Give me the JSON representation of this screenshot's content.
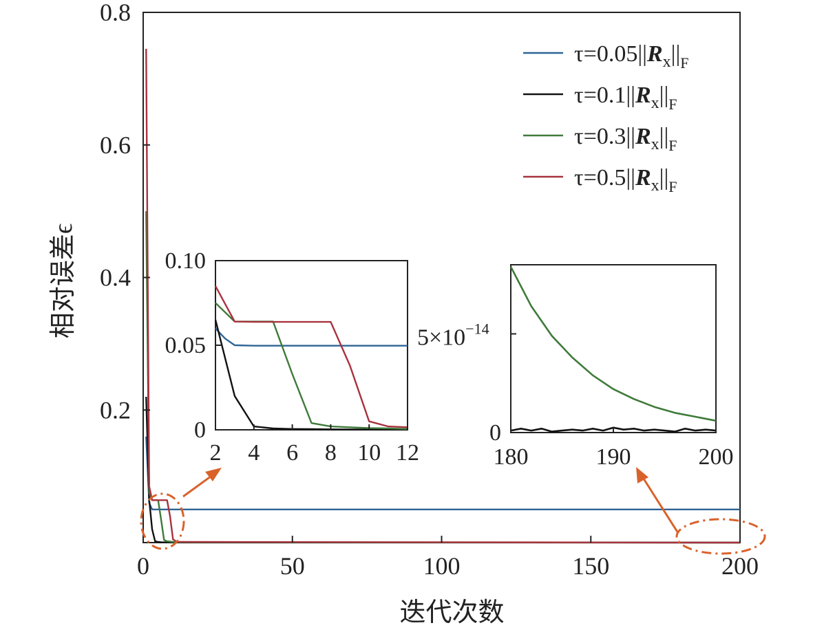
{
  "chart_data": [
    {
      "type": "line",
      "xlabel": "迭代次数",
      "ylabel": "相对误差ϵ",
      "xlim": [
        0,
        200
      ],
      "ylim": [
        0,
        0.8
      ],
      "xticks": [
        0,
        50,
        100,
        150,
        200
      ],
      "yticks": [
        0.2,
        0.4,
        0.6,
        0.8
      ],
      "xtick_labels": [
        "0",
        "50",
        "100",
        "150",
        "200"
      ],
      "ytick_labels": [
        "0.2",
        "0.4",
        "0.6",
        "0.8"
      ],
      "legend_position": "top-right",
      "series": [
        {
          "name": "τ=0.05||Rx||F",
          "label_parts": {
            "prefix": "τ=0.05||",
            "bold": "R",
            "sub": "x",
            "suffix": "||",
            "sub2": "F"
          },
          "color": "#2e6496",
          "x": [
            1,
            2,
            3,
            4,
            5,
            6,
            7,
            8,
            9,
            10,
            12,
            200
          ],
          "y": [
            0.16,
            0.06,
            0.05,
            0.05,
            0.05,
            0.05,
            0.05,
            0.05,
            0.05,
            0.05,
            0.05,
            0.05
          ]
        },
        {
          "name": "τ=0.1||Rx||F",
          "label_parts": {
            "prefix": "τ=0.1||",
            "bold": "R",
            "sub": "x",
            "suffix": "||",
            "sub2": "F"
          },
          "color": "#111111",
          "x": [
            1,
            2,
            3,
            4,
            5,
            6,
            8,
            12,
            200
          ],
          "y": [
            0.22,
            0.065,
            0.02,
            0.002,
            0.001,
            0.0005,
            0.0002,
            0.0001,
            0.0
          ]
        },
        {
          "name": "τ=0.3||Rx||F",
          "label_parts": {
            "prefix": "τ=0.3||",
            "bold": "R",
            "sub": "x",
            "suffix": "||",
            "sub2": "F"
          },
          "color": "#3f7a3a",
          "x": [
            1,
            2,
            3,
            4,
            5,
            6,
            7,
            8,
            10,
            12,
            200
          ],
          "y": [
            0.5,
            0.075,
            0.064,
            0.064,
            0.064,
            0.035,
            0.004,
            0.002,
            0.001,
            0.0005,
            0.0
          ]
        },
        {
          "name": "τ=0.5||Rx||F",
          "label_parts": {
            "prefix": "τ=0.5||",
            "bold": "R",
            "sub": "x",
            "suffix": "||",
            "sub2": "F"
          },
          "color": "#a8323e",
          "x": [
            1,
            2,
            3,
            4,
            5,
            6,
            7,
            8,
            9,
            10,
            11,
            12,
            200
          ],
          "y": [
            0.745,
            0.085,
            0.064,
            0.064,
            0.064,
            0.064,
            0.064,
            0.064,
            0.04,
            0.005,
            0.002,
            0.001,
            0.0
          ]
        }
      ]
    },
    {
      "type": "line",
      "inset": "left",
      "xlim": [
        2,
        12
      ],
      "ylim": [
        0,
        0.1
      ],
      "xticks": [
        2,
        4,
        6,
        8,
        10,
        12
      ],
      "yticks": [
        0,
        0.05,
        0.1
      ],
      "xtick_labels": [
        "2",
        "4",
        "6",
        "8",
        "10",
        "12"
      ],
      "ytick_labels": [
        "0",
        "0.05",
        "0.10"
      ],
      "series": [
        {
          "name": "τ=0.05||Rx||F",
          "color": "#2e6496",
          "x": [
            2,
            2.5,
            3,
            4,
            5,
            6,
            7,
            8,
            9,
            10,
            11,
            12
          ],
          "y": [
            0.06,
            0.054,
            0.05,
            0.0497,
            0.0497,
            0.0497,
            0.0497,
            0.0497,
            0.0497,
            0.0497,
            0.0497,
            0.0497
          ]
        },
        {
          "name": "τ=0.1||Rx||F",
          "color": "#111111",
          "x": [
            2,
            3,
            4,
            5,
            6,
            7,
            8,
            9,
            10,
            11,
            12
          ],
          "y": [
            0.065,
            0.02,
            0.002,
            0.0008,
            0.0005,
            0.0004,
            0.0003,
            0.0002,
            0.0002,
            0.0001,
            0.0001
          ]
        },
        {
          "name": "τ=0.3||Rx||F",
          "color": "#3f7a3a",
          "x": [
            2,
            3,
            4,
            5,
            6,
            7,
            8,
            9,
            10,
            11,
            12
          ],
          "y": [
            0.075,
            0.064,
            0.064,
            0.064,
            0.033,
            0.004,
            0.002,
            0.0015,
            0.001,
            0.0008,
            0.0005
          ]
        },
        {
          "name": "τ=0.5||Rx||F",
          "color": "#a8323e",
          "x": [
            2,
            3,
            4,
            5,
            6,
            7,
            8,
            9,
            10,
            11,
            12
          ],
          "y": [
            0.085,
            0.064,
            0.0638,
            0.0638,
            0.0638,
            0.0638,
            0.0638,
            0.038,
            0.005,
            0.002,
            0.0015
          ]
        }
      ]
    },
    {
      "type": "line",
      "inset": "right",
      "xlim": [
        180,
        200
      ],
      "ylim": [
        0,
        8.5e-14
      ],
      "xticks": [
        180,
        190,
        200
      ],
      "xtick_labels": [
        "180",
        "190",
        "200"
      ],
      "yticks": [
        0,
        5e-14
      ],
      "ytick_labels": [
        "0",
        "5×10",
        "−14"
      ],
      "series": [
        {
          "name": "τ=0.3||Rx||F",
          "color": "#3f7a3a",
          "x": [
            180,
            182,
            184,
            186,
            188,
            190,
            192,
            194,
            196,
            198,
            200
          ],
          "y": [
            8.4e-14,
            6.4e-14,
            4.9e-14,
            3.8e-14,
            2.9e-14,
            2.2e-14,
            1.7e-14,
            1.3e-14,
            1e-14,
            8e-15,
            6e-15
          ]
        },
        {
          "name": "τ=0.1||Rx||F",
          "color": "#111111",
          "x": [
            180,
            181,
            182,
            183,
            184,
            185,
            186,
            187,
            188,
            189,
            190,
            191,
            192,
            193,
            194,
            195,
            196,
            197,
            198,
            199,
            200
          ],
          "y": [
            1e-15,
            2e-15,
            1e-15,
            2e-15,
            5e-16,
            1e-15,
            1.5e-15,
            1e-15,
            2e-15,
            1e-15,
            2.5e-15,
            1.5e-15,
            2e-15,
            1e-15,
            1.5e-15,
            1e-15,
            5e-16,
            2e-15,
            1e-15,
            1.5e-15,
            1e-15
          ]
        }
      ]
    }
  ],
  "annotation_color": "#d9622b"
}
